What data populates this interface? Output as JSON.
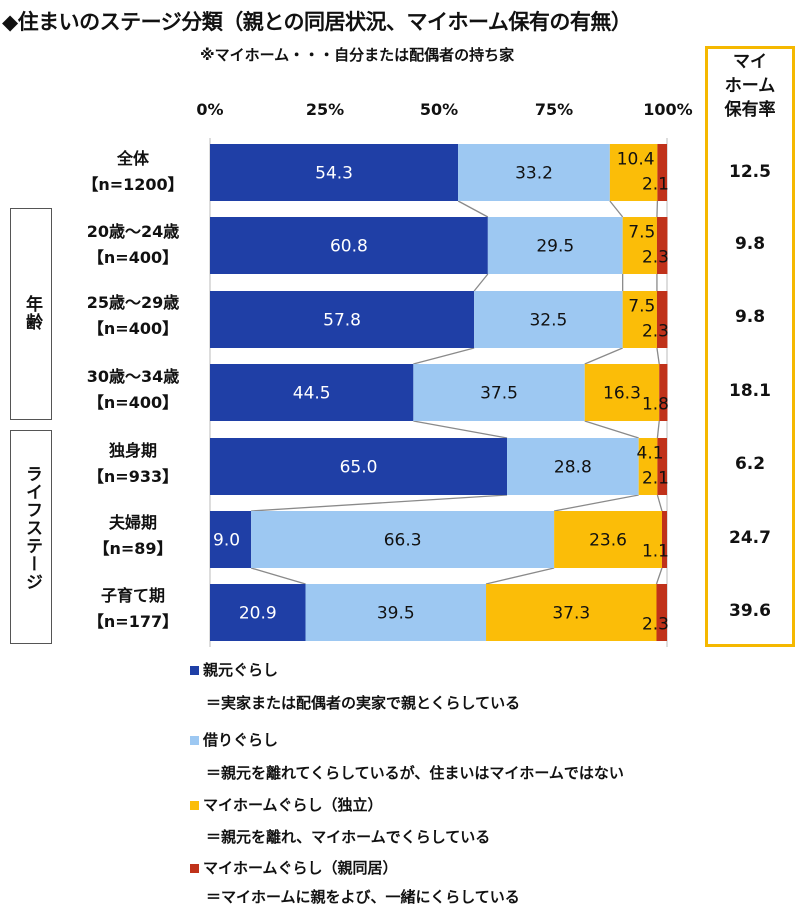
{
  "header": {
    "title": "◆住まいのステージ分類（親との同居状況、マイホーム保有の有無）",
    "subtitle": "※マイホーム・・・自分または配偶者の持ち家"
  },
  "axis": {
    "ticks": [
      "0%",
      "25%",
      "50%",
      "75%",
      "100%"
    ]
  },
  "rows": [
    {
      "name": "全体",
      "n": "【n=1200】",
      "own": "12.5"
    },
    {
      "name": "20歳～24歳",
      "n": "【n=400】",
      "own": "9.8"
    },
    {
      "name": "25歳～29歳",
      "n": "【n=400】",
      "own": "9.8"
    },
    {
      "name": "30歳～34歳",
      "n": "【n=400】",
      "own": "18.1"
    },
    {
      "name": "独身期",
      "n": "【n=933】",
      "own": "6.2"
    },
    {
      "name": "夫婦期",
      "n": "【n=89】",
      "own": "24.7"
    },
    {
      "name": "子育て期",
      "n": "【n=177】",
      "own": "39.6"
    }
  ],
  "groups": {
    "age": "年齢",
    "life": "ライフステージ"
  },
  "own_header": [
    "マイ",
    "ホーム",
    "保有率"
  ],
  "legend": [
    {
      "name": "親元ぐらし",
      "desc": "＝実家または配偶者の実家で親とくらしている"
    },
    {
      "name": "借りぐらし",
      "desc": "＝親元を離れてくらしているが、住まいはマイホームではない"
    },
    {
      "name": "マイホームぐらし（独立）",
      "desc": "＝親元を離れ、マイホームでくらしている"
    },
    {
      "name": "マイホームぐらし（親同居）",
      "desc": "＝マイホームに親をよび、一緒にくらしている"
    }
  ],
  "colors": {
    "oyamoto": "#1f3fa6",
    "kari": "#9dc8f2",
    "dokuritsu": "#fbbd08",
    "doukyo": "#c0321a",
    "accent_box": "#f5b800"
  },
  "chart_data": {
    "type": "bar",
    "orientation": "horizontal",
    "stacked": true,
    "categories": [
      "全体【n=1200】",
      "20歳～24歳【n=400】",
      "25歳～29歳【n=400】",
      "30歳～34歳【n=400】",
      "独身期【n=933】",
      "夫婦期【n=89】",
      "子育て期【n=177】"
    ],
    "series": [
      {
        "name": "親元ぐらし",
        "values": [
          54.3,
          60.8,
          57.8,
          44.5,
          65.0,
          9.0,
          20.9
        ],
        "labels": [
          "54.3",
          "60.8",
          "57.8",
          "44.5",
          "65.0",
          "9.0",
          "20.9"
        ]
      },
      {
        "name": "借りぐらし",
        "values": [
          33.2,
          29.5,
          32.5,
          37.5,
          28.8,
          66.3,
          39.5
        ],
        "labels": [
          "33.2",
          "29.5",
          "32.5",
          "37.5",
          "28.8",
          "66.3",
          "39.5"
        ]
      },
      {
        "name": "マイホームぐらし（独立）",
        "values": [
          10.4,
          7.5,
          7.5,
          16.3,
          4.1,
          23.6,
          37.3
        ],
        "labels": [
          "10.4",
          "7.5",
          "7.5",
          "16.3",
          "4.1",
          "23.6",
          "37.3"
        ]
      },
      {
        "name": "マイホームぐらし（親同居）",
        "values": [
          2.1,
          2.3,
          2.3,
          1.8,
          2.1,
          1.1,
          2.3
        ],
        "labels": [
          "2.1",
          "2.3",
          "2.3",
          "1.8",
          "2.1",
          "1.1",
          "2.3"
        ]
      }
    ],
    "xlim": [
      0,
      100
    ],
    "grid": false,
    "connector_lines": true,
    "legend_position": "bottom"
  }
}
